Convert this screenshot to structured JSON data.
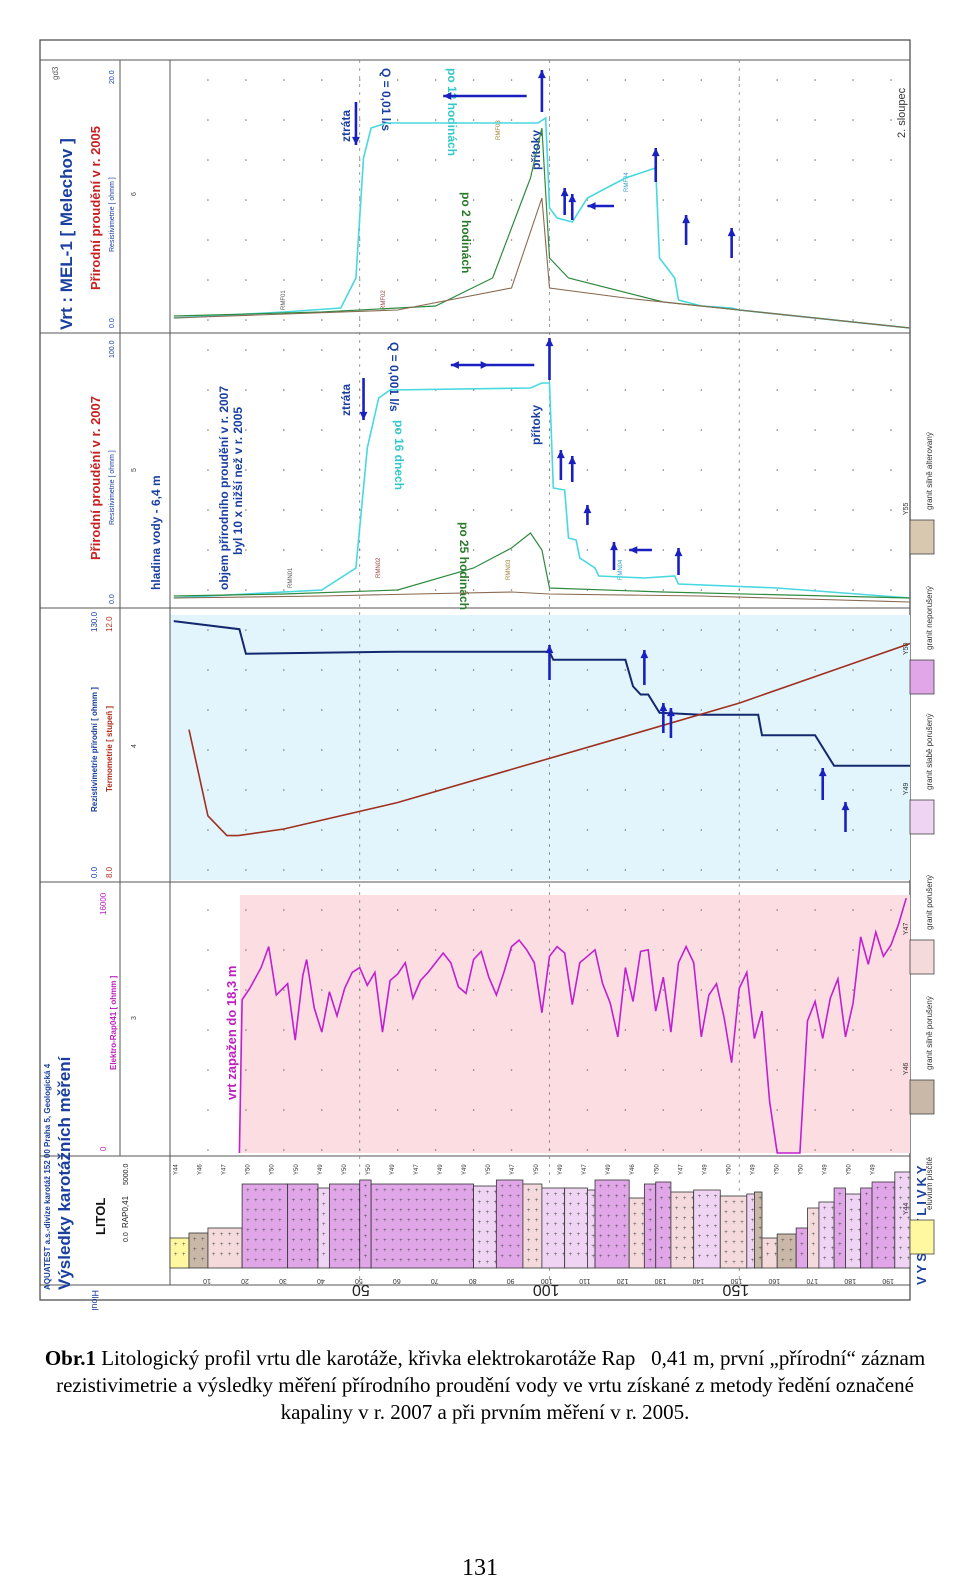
{
  "header": {
    "company": "AQUATEST a.s.-divize karotáž 152 00  Praha 5,  Geologická 4",
    "title": "Výsledky karotážních měření",
    "depth_label": "Hloubka [m]",
    "litol_label": "LITOL",
    "rap_label": "RAP0,41",
    "rap_scale": [
      "0.0",
      "5000.0"
    ],
    "well_title": "Vrt : MEL-1 [ Melechov ]",
    "gd3": "gd3",
    "column2": "2. sloupec"
  },
  "tracks": {
    "elektro": {
      "label": "Elektro-Rap041 [ ohmm ]",
      "min": "0",
      "max": "16000",
      "num": "3",
      "annotation": "vrt zapažen do 18,3 m"
    },
    "rez": {
      "label": "Rezistivimetrie přírodní [ ohmm ]",
      "min": "0.0",
      "max": "130.0",
      "num": "4"
    },
    "termo": {
      "label": "Termometrie [ stupeň ]",
      "min": "8.0",
      "max": "12.0"
    },
    "flow2007": {
      "title": "Přirodní proudění v r. 2007",
      "sub": "Resistivimetrie [ ohmm ]",
      "min": "0.0",
      "max": "100.0",
      "num": "5",
      "water": "hladina vody - 6,4 m",
      "note1": "objem přírodního proudění v r. 2007",
      "note2": "byl 10 x nižší než v r. 2005",
      "ztrata": "ztráta",
      "pritoky": "přítoky",
      "q": "Q = 0,001 l/s",
      "p1": "po 16 dnech",
      "p2": "po 25 hodinách",
      "r1": "RMN01",
      "r2": "RMN02",
      "r3": "RMN03",
      "r4": "RMN04"
    },
    "flow2005": {
      "title": "Přirodní proudění v r. 2005",
      "sub": "Resistivimetrie [ ohmm ]",
      "min": "0.0",
      "max": "20.0",
      "num": "6",
      "ztrata": "ztráta",
      "pritoky": "přítoky",
      "q": "Q = 0,01 l/s",
      "p1": "po 12 hodinách",
      "p2": "po 2 hodinách",
      "r1": "RMF01",
      "r2": "RMF02",
      "r3": "RMF03",
      "r4": "RMF04"
    }
  },
  "depth_ticks": [
    "10",
    "20",
    "30",
    "40",
    "50",
    "60",
    "70",
    "80",
    "90",
    "100",
    "110",
    "120",
    "130",
    "140",
    "150",
    "160",
    "170",
    "180",
    "190"
  ],
  "depth_big": [
    "50",
    "100",
    "150"
  ],
  "lith_codes": [
    "Y44",
    "Y46",
    "Y47",
    "Y50",
    "Y50",
    "Y50",
    "Y49",
    "Y50",
    "Y50",
    "Y49",
    "Y47",
    "Y49",
    "Y49",
    "Y50",
    "Y47",
    "Y50",
    "Y49",
    "Y47",
    "Y49",
    "Y46",
    "Y50",
    "Y47",
    "Y49",
    "Y50",
    "Y49",
    "Y50",
    "Y50",
    "Y49",
    "Y50",
    "Y49"
  ],
  "legend": {
    "title": "VYSVĚTLIVKY",
    "items": [
      {
        "code": "Y44",
        "label": "eluvium písčité",
        "color": "#fff8a0"
      },
      {
        "code": "Y46",
        "label": "granit silně porušený",
        "color": "#c9b7a8"
      },
      {
        "code": "Y47",
        "label": "granit porušený",
        "color": "#f4dada"
      },
      {
        "code": "Y49",
        "label": "granit slabě porušený",
        "color": "#f0d4f4"
      },
      {
        "code": "Y50",
        "label": "granit neporušený",
        "color": "#e0a6e8"
      },
      {
        "code": "Y55",
        "label": "granit silně alterovaný",
        "color": "#d8c8b0"
      }
    ]
  },
  "chart_data": [
    {
      "type": "line",
      "title": "Elektro-Rap041 [ ohmm ]",
      "x_axis": "Hloubka [m]",
      "xlim": [
        0,
        195
      ],
      "ylim": [
        0,
        16000
      ],
      "series": [
        {
          "name": "Elektro-Rap041 [ ohmm ]",
          "x": [
            18.3,
            19,
            21,
            24,
            26,
            28,
            31,
            33,
            35,
            36,
            38,
            40,
            42,
            44,
            46,
            48,
            50,
            52,
            54,
            56,
            58,
            60,
            62,
            64,
            66,
            68,
            70,
            72,
            74,
            76,
            78,
            80,
            82,
            84,
            86,
            88,
            90,
            92,
            94,
            96,
            98,
            100,
            102,
            104,
            106,
            108,
            110,
            112,
            114,
            116,
            118,
            120,
            122,
            124,
            126,
            128,
            130,
            132,
            134,
            136,
            138,
            140,
            142,
            144,
            146,
            148,
            150,
            152,
            154,
            156,
            158,
            160,
            162,
            164,
            166,
            168,
            170,
            172,
            174,
            176,
            178,
            180,
            182,
            184,
            186,
            188,
            190,
            192,
            194
          ],
          "y": [
            0,
            9500,
            10200,
            11500,
            12800,
            9800,
            10500,
            7000,
            11000,
            12000,
            9000,
            7500,
            10000,
            8500,
            10200,
            11200,
            11500,
            10400,
            11200,
            7500,
            10700,
            11100,
            11800,
            9600,
            10700,
            11200,
            11800,
            12400,
            11800,
            10300,
            9900,
            12000,
            12500,
            10900,
            9800,
            11200,
            12800,
            13200,
            12600,
            11800,
            8700,
            12200,
            12800,
            12400,
            9200,
            11800,
            12200,
            12600,
            10500,
            9300,
            7200,
            11500,
            9400,
            12500,
            12600,
            8800,
            10900,
            7500,
            11800,
            12800,
            11800,
            7200,
            9800,
            10500,
            8400,
            5600,
            10200,
            11200,
            7100,
            8800,
            3200,
            0,
            0,
            0,
            0,
            8200,
            9400,
            7100,
            9600,
            10800,
            7200,
            9300,
            13400,
            11700,
            13700,
            12200,
            12900,
            14200,
            15800
          ]
        }
      ]
    },
    {
      "type": "line",
      "title": "Rezistivimetrie přírodní / Termometrie",
      "x_axis": "Hloubka [m]",
      "xlim": [
        0,
        195
      ],
      "series": [
        {
          "name": "Rezistivimetrie přírodní [ ohmm ]",
          "x": [
            1,
            18.3,
            20,
            60,
            80,
            100,
            101,
            120,
            122,
            124,
            126,
            129,
            140,
            155,
            156,
            170,
            175,
            195
          ],
          "y": [
            128,
            124,
            112,
            113,
            113,
            113,
            109,
            109,
            96,
            92,
            92,
            83,
            82,
            82,
            72,
            72,
            57,
            57
          ]
        },
        {
          "name": "Termometrie [ stupeň ]",
          "x": [
            5,
            10,
            15,
            18,
            30,
            60,
            90,
            120,
            150,
            180,
            195
          ],
          "y": [
            10.3,
            9.0,
            8.7,
            8.7,
            8.8,
            9.2,
            9.7,
            10.2,
            10.7,
            11.3,
            11.6
          ]
        }
      ]
    }
  ]
}
